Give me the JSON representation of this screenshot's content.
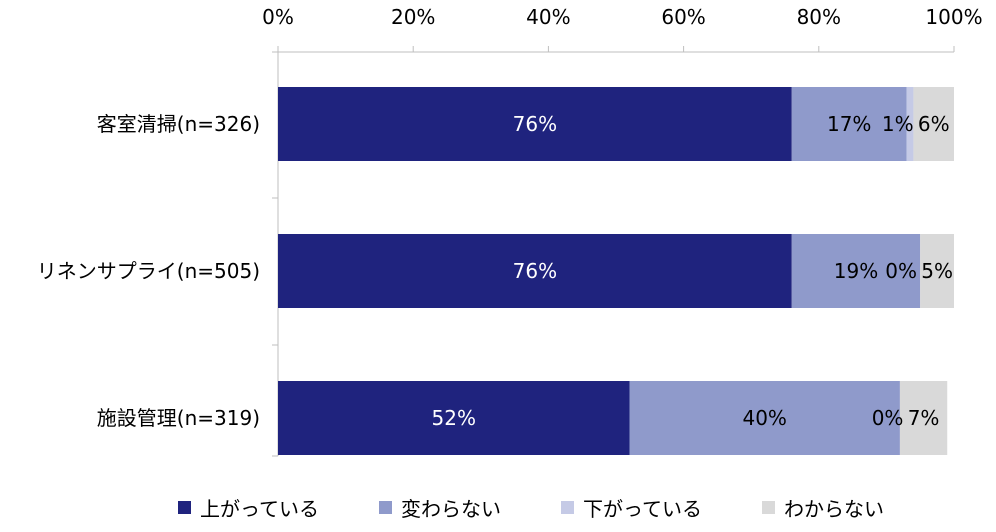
{
  "chart_data": {
    "type": "bar",
    "orientation": "horizontal",
    "stacked": true,
    "xlim": [
      0,
      100
    ],
    "x_ticks": [
      "0%",
      "20%",
      "40%",
      "60%",
      "80%",
      "100%"
    ],
    "categories": [
      "客室清掃(n=326)",
      "リネンサプライ(n=505)",
      "施設管理(n=319)"
    ],
    "series": [
      {
        "name": "上がっている",
        "color": "#1f237e",
        "label_color": "#ffffff",
        "values": [
          76,
          76,
          52
        ],
        "labels": [
          "76%",
          "76%",
          "52%"
        ]
      },
      {
        "name": "変わらない",
        "color": "#8f9acb",
        "label_color": "#000000",
        "values": [
          17,
          19,
          40
        ],
        "labels": [
          "17%",
          "19%",
          "40%"
        ]
      },
      {
        "name": "下がっている",
        "color": "#c5cae6",
        "label_color": "#000000",
        "values": [
          1,
          0,
          0
        ],
        "labels": [
          "1%",
          "0%",
          "0%"
        ]
      },
      {
        "name": "わからない",
        "color": "#d9d9d9",
        "label_color": "#000000",
        "values": [
          6,
          5,
          7
        ],
        "labels": [
          "6%",
          "5%",
          "7%"
        ]
      }
    ],
    "legend_position": "bottom"
  }
}
